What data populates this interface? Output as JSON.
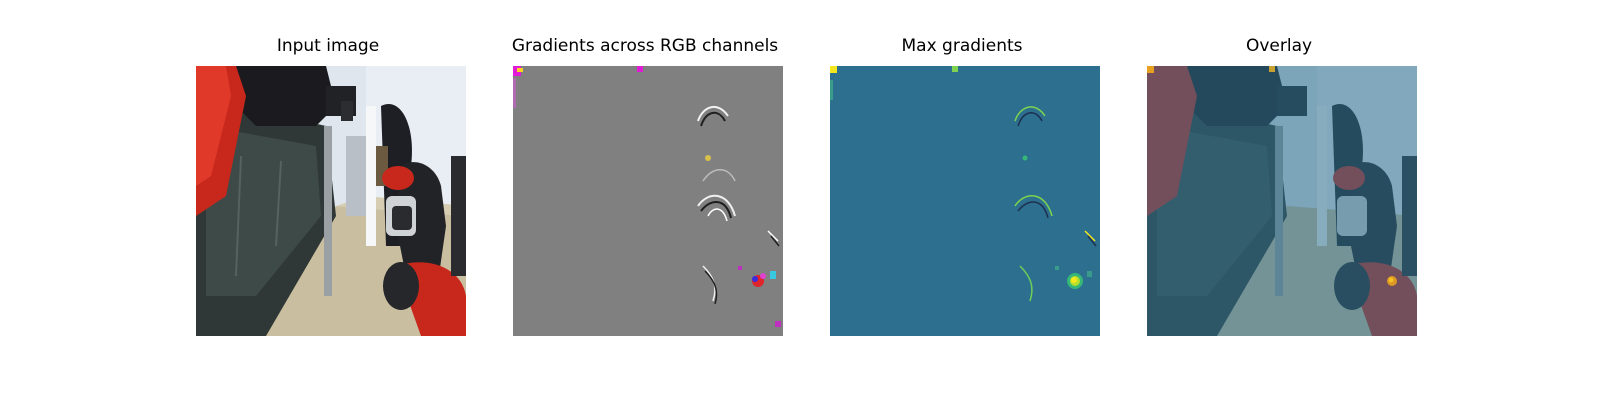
{
  "figure": {
    "panels": [
      {
        "title": "Input image",
        "image": "robot-arm-hallway-photo"
      },
      {
        "title": "Gradients across RGB channels",
        "image": "rgb-gradient-map"
      },
      {
        "title": "Max gradients",
        "image": "max-gradient-heatmap"
      },
      {
        "title": "Overlay",
        "image": "heatmap-overlay-on-photo"
      }
    ],
    "colors": {
      "gradient_background": "#808080",
      "heatmap_background": "#2c6f8e",
      "heatmap_high": "#f5e71f",
      "robot_red": "#c8281c",
      "floor": "#c9bfa0",
      "wall": "#dfe6ee"
    }
  }
}
